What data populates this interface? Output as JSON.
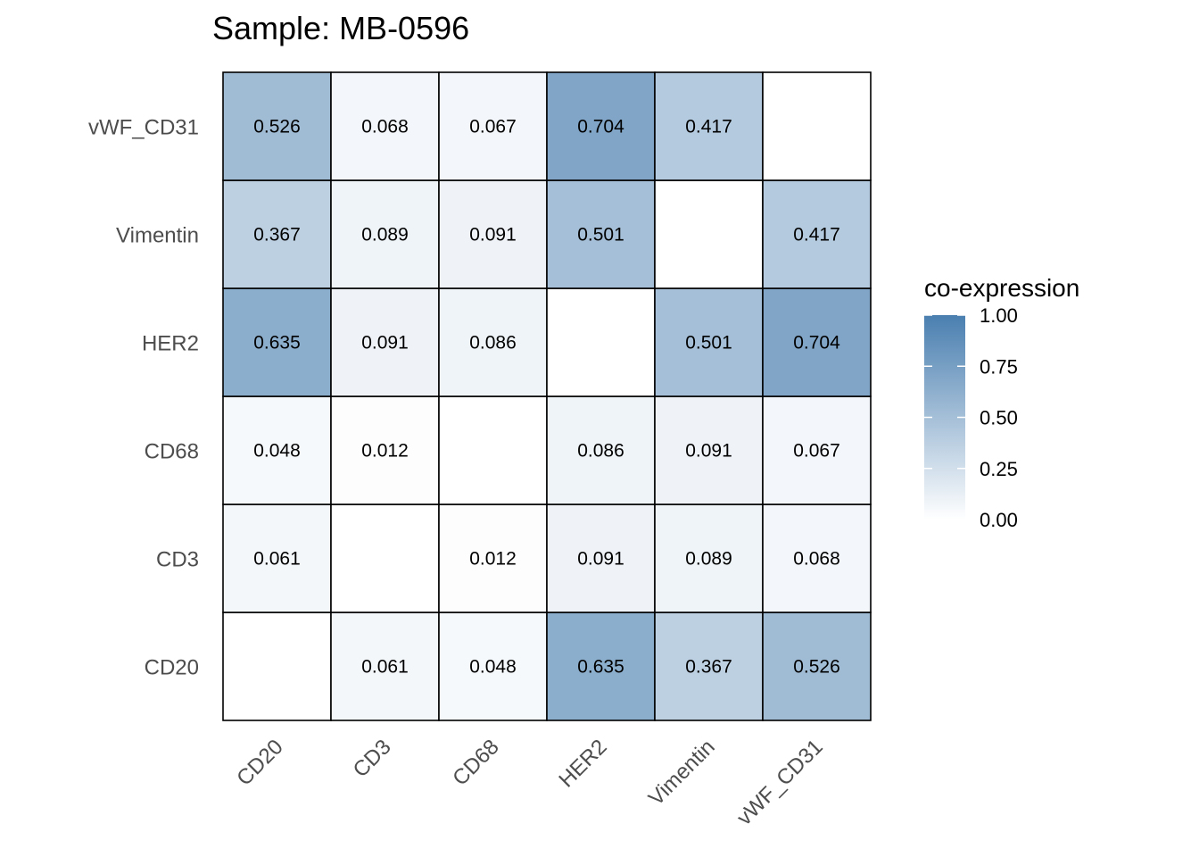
{
  "chart_data": {
    "type": "heatmap",
    "title": "Sample: MB-0596",
    "x_categories": [
      "CD20",
      "CD3",
      "CD68",
      "HER2",
      "Vimentin",
      "vWF_CD31"
    ],
    "y_categories": [
      "CD20",
      "CD3",
      "CD68",
      "HER2",
      "Vimentin",
      "vWF_CD31"
    ],
    "values": [
      [
        null,
        0.061,
        0.048,
        0.635,
        0.367,
        0.526
      ],
      [
        0.061,
        null,
        0.012,
        0.091,
        0.089,
        0.068
      ],
      [
        0.048,
        0.012,
        null,
        0.086,
        0.091,
        0.067
      ],
      [
        0.635,
        0.091,
        0.086,
        null,
        0.501,
        0.704
      ],
      [
        0.367,
        0.089,
        0.091,
        0.501,
        null,
        0.417
      ],
      [
        0.526,
        0.068,
        0.067,
        0.704,
        0.417,
        null
      ]
    ],
    "value_labels": [
      [
        "",
        "0.061",
        "0.048",
        "0.635",
        "0.367",
        "0.526"
      ],
      [
        "0.061",
        "",
        "0.012",
        "0.091",
        "0.089",
        "0.068"
      ],
      [
        "0.048",
        "0.012",
        "",
        "0.086",
        "0.091",
        "0.067"
      ],
      [
        "0.635",
        "0.091",
        "0.086",
        "",
        "0.501",
        "0.704"
      ],
      [
        "0.367",
        "0.089",
        "0.091",
        "0.501",
        "",
        "0.417"
      ],
      [
        "0.526",
        "0.068",
        "0.067",
        "0.704",
        "0.417",
        ""
      ]
    ],
    "color_scale": {
      "low": "#ffffff",
      "high": "#4a7fb0",
      "limits": [
        0,
        1
      ]
    },
    "legend": {
      "title": "co-expression",
      "tick_values": [
        0,
        0.25,
        0.5,
        0.75,
        1
      ],
      "tick_labels": [
        "0.00",
        "0.25",
        "0.50",
        "0.75",
        "1.00"
      ],
      "position": "right"
    },
    "grid": false
  }
}
